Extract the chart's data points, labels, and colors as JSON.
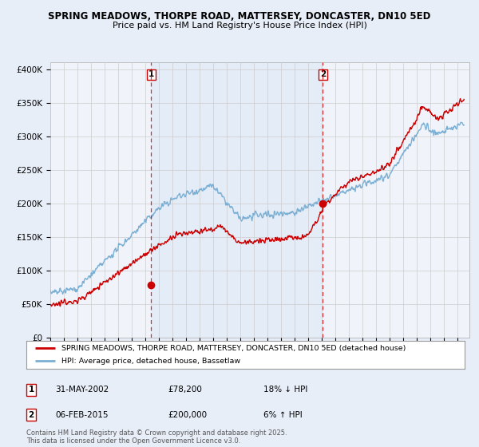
{
  "title1": "SPRING MEADOWS, THORPE ROAD, MATTERSEY, DONCASTER, DN10 5ED",
  "title2": "Price paid vs. HM Land Registry's House Price Index (HPI)",
  "legend_label1": "SPRING MEADOWS, THORPE ROAD, MATTERSEY, DONCASTER, DN10 5ED (detached house)",
  "legend_label2": "HPI: Average price, detached house, Bassetlaw",
  "annotation1_date": "31-MAY-2002",
  "annotation1_price": "£78,200",
  "annotation1_hpi": "18% ↓ HPI",
  "annotation1_year": 2002.42,
  "annotation1_value": 78200,
  "annotation2_date": "06-FEB-2015",
  "annotation2_price": "£200,000",
  "annotation2_hpi": "6% ↑ HPI",
  "annotation2_year": 2015.09,
  "annotation2_value": 200000,
  "ylim_min": 0,
  "ylim_max": 410000,
  "color_property": "#cc0000",
  "color_hpi": "#7bafd4",
  "color_vline": "#cc0000",
  "color_shade": "#dce8f5",
  "background_color": "#e8eef8",
  "plot_bg_color": "#f0f4fa",
  "footer_text": "Contains HM Land Registry data © Crown copyright and database right 2025.\nThis data is licensed under the Open Government Licence v3.0.",
  "ytick_labels": [
    "£0",
    "£50K",
    "£100K",
    "£150K",
    "£200K",
    "£250K",
    "£300K",
    "£350K",
    "£400K"
  ],
  "ytick_values": [
    0,
    50000,
    100000,
    150000,
    200000,
    250000,
    300000,
    350000,
    400000
  ]
}
